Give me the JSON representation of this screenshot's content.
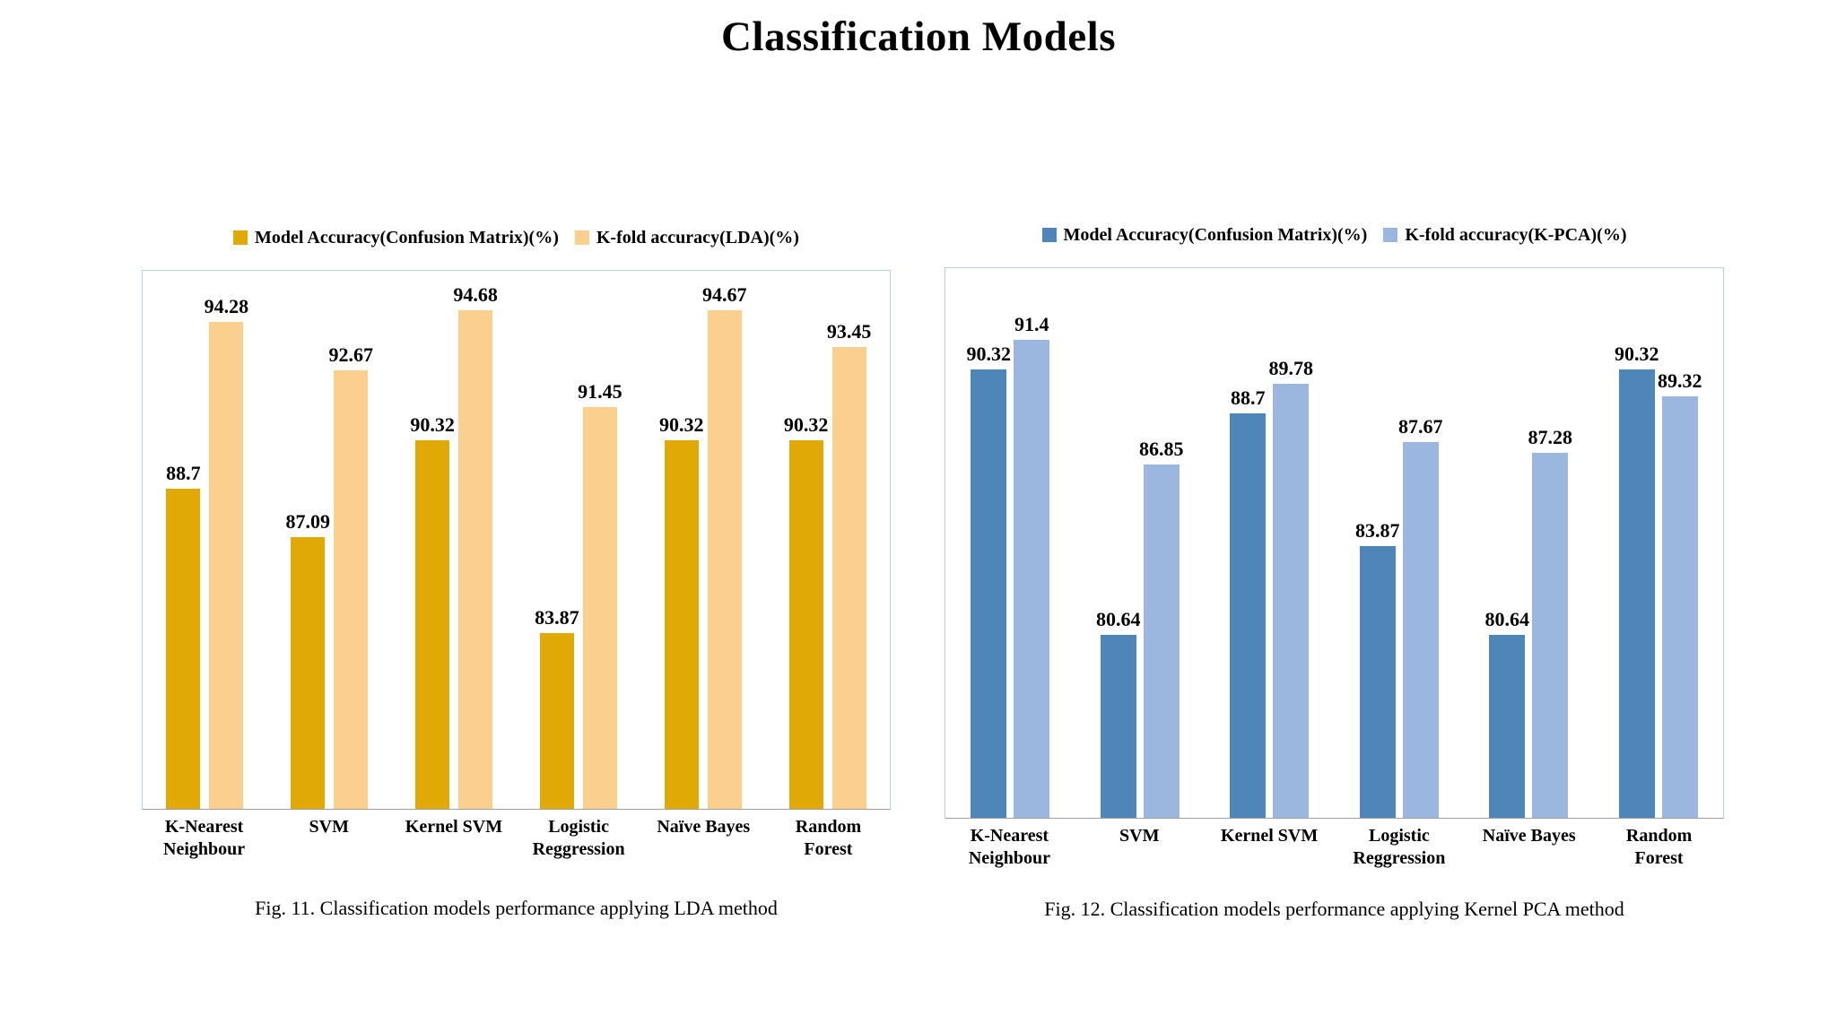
{
  "page_title": "Classification Models",
  "colors": {
    "gold": "#E0A906",
    "light_orange": "#FBCF8E",
    "blue": "#4E86BA",
    "light_blue": "#9BB7DF",
    "plot_border": "#B9CFE8",
    "axis_line": "#9E9E9E"
  },
  "chart_data": [
    {
      "type": "bar",
      "title": "",
      "caption": "Fig. 11. Classification models performance applying LDA method",
      "categories": [
        "K-Nearest\nNeighbour",
        "SVM",
        "Kernel SVM",
        "Logistic\nReggression",
        "Naïve Bayes",
        "Random\nForest"
      ],
      "series": [
        {
          "name": "Model Accuracy(Confusion Matrix)(%)",
          "color": "#E0A906",
          "values": [
            88.7,
            87.09,
            90.32,
            83.87,
            90.32,
            90.32
          ]
        },
        {
          "name": "K-fold accuracy(LDA)(%)",
          "color": "#FBCF8E",
          "values": [
            94.28,
            92.67,
            94.68,
            91.45,
            94.67,
            93.45
          ]
        }
      ],
      "ylim": [
        78,
        96
      ],
      "xlabel": "",
      "ylabel": "",
      "grid": false,
      "data_labels": true,
      "legend_position": "top"
    },
    {
      "type": "bar",
      "title": "",
      "caption": "Fig. 12. Classification models performance applying Kernel PCA method",
      "categories": [
        "K-Nearest\nNeighbour",
        "SVM",
        "Kernel SVM",
        "Logistic\nReggression",
        "Naïve Bayes",
        "Random\nForest"
      ],
      "series": [
        {
          "name": "Model Accuracy(Confusion Matrix)(%)",
          "color": "#4E86BA",
          "values": [
            90.32,
            80.64,
            88.7,
            83.87,
            80.64,
            90.32
          ]
        },
        {
          "name": "K-fold accuracy(K-PCA)(%)",
          "color": "#9BB7DF",
          "values": [
            91.4,
            86.85,
            89.78,
            87.67,
            87.28,
            89.32
          ]
        }
      ],
      "ylim": [
        74,
        94
      ],
      "xlabel": "",
      "ylabel": "",
      "grid": false,
      "data_labels": true,
      "legend_position": "top"
    }
  ]
}
